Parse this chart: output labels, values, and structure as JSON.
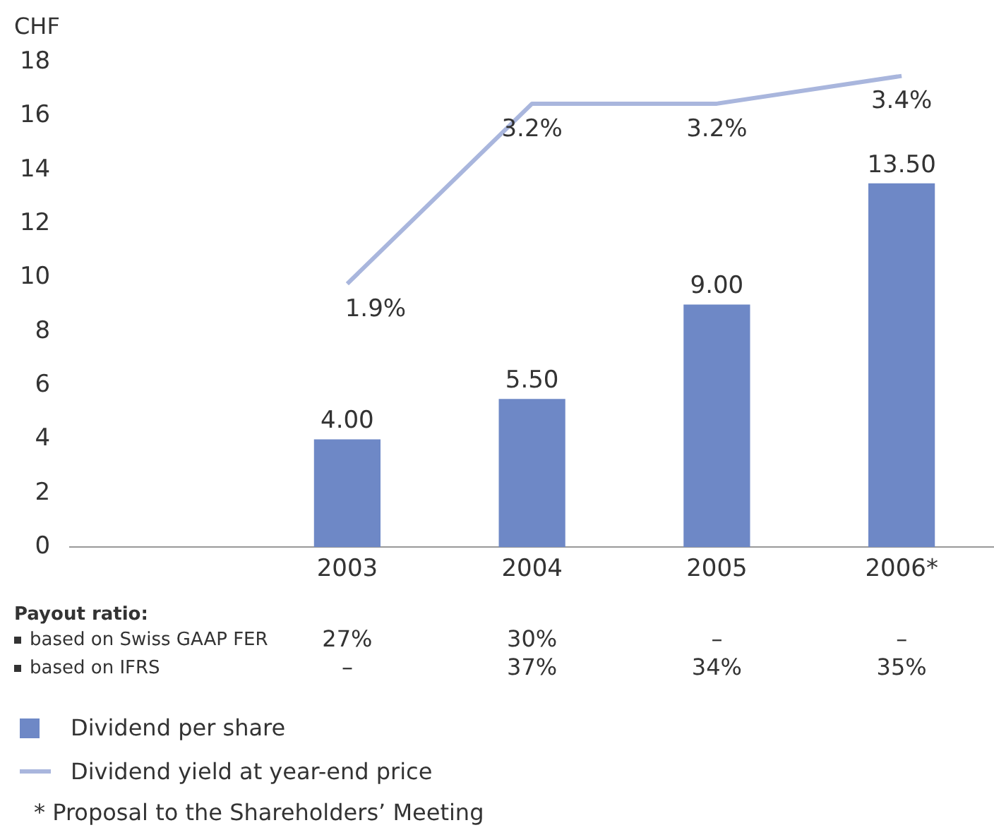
{
  "chart_data": {
    "type": "bar",
    "ylabel": "CHF",
    "categories": [
      null,
      "2003",
      "2004",
      "2005",
      "2006*"
    ],
    "series": [
      {
        "name": "Dividend per share",
        "color": "#6e88c6",
        "values": [
          null,
          4,
          5.5,
          9,
          13.5
        ],
        "value_labels": [
          null,
          "4.00",
          "5.50",
          "9.00",
          "13.50"
        ]
      },
      {
        "name": "Dividend yield at year-end price",
        "type": "line",
        "axis": "y2",
        "color": "#a9b6dd",
        "values": [
          null,
          1.9,
          3.2,
          3.2,
          3.4
        ],
        "value_labels": [
          null,
          "1.9%",
          "3.2%",
          "3.2%",
          "3.4%"
        ]
      }
    ],
    "ylim": [
      0,
      18
    ],
    "yticks": [
      0,
      2,
      4,
      6,
      8,
      10,
      12,
      14,
      16,
      18
    ],
    "grid": false,
    "legend": "bottom",
    "marker": "none",
    "line_style": "solid",
    "annotations": [
      "Payout ratio:",
      "based on Swiss GAAP FER",
      "27%",
      "30%",
      "–",
      "–",
      "based on IFRS",
      "–",
      "37%",
      "34%",
      "35%",
      "* Proposal to the Shareholders’ Meeting"
    ]
  }
}
